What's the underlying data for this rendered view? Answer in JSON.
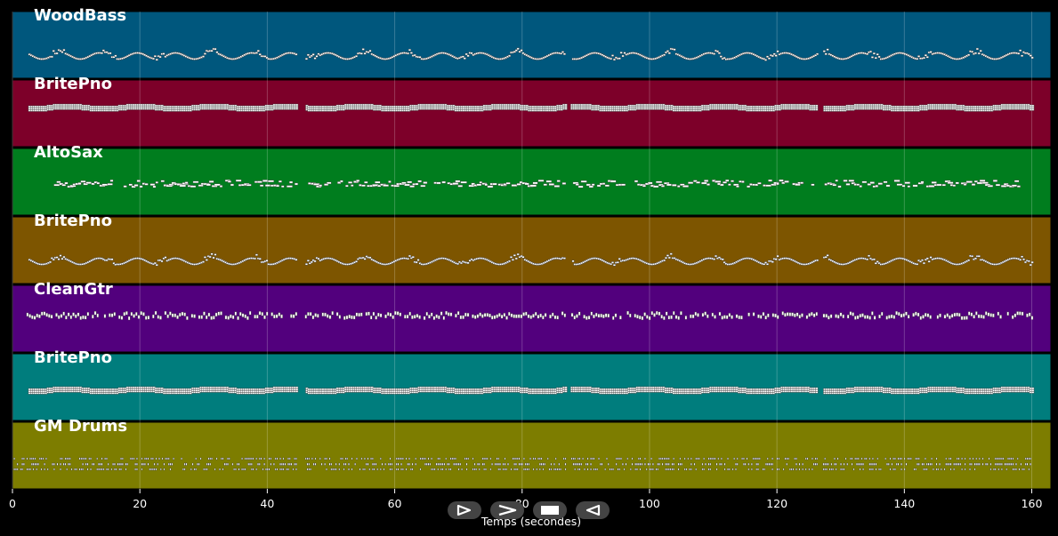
{
  "chart_data": {
    "type": "piano-roll",
    "xlabel": "Temps (secondes)",
    "xlim": [
      0,
      163
    ],
    "xticks": [
      0,
      20,
      40,
      60,
      80,
      100,
      120,
      140,
      160
    ],
    "tracks": [
      {
        "name": "WoodBass",
        "color": "#00577d",
        "pattern": "wave",
        "start": 2.5,
        "end": 160
      },
      {
        "name": "BritePno",
        "color": "#7d0029",
        "pattern": "chords",
        "start": 2.5,
        "end": 160
      },
      {
        "name": "AltoSax",
        "color": "#007d1e",
        "pattern": "melody",
        "start": 6.5,
        "end": 158
      },
      {
        "name": "BritePno",
        "color": "#7d5500",
        "pattern": "wave",
        "start": 2.5,
        "end": 160
      },
      {
        "name": "CleanGtr",
        "color": "#52007d",
        "pattern": "strum",
        "start": 2.2,
        "end": 160
      },
      {
        "name": "BritePno",
        "color": "#007d7d",
        "pattern": "chords",
        "start": 2.5,
        "end": 160
      },
      {
        "name": "GM Drums",
        "color": "#7d7d00",
        "pattern": "drums",
        "start": 0.2,
        "end": 160
      }
    ]
  },
  "toolbar": {
    "buttons": [
      {
        "name": "play-outline-button",
        "icon": "play-outline-icon"
      },
      {
        "name": "forward-button",
        "icon": "chevron-right-icon"
      },
      {
        "name": "stop-button",
        "icon": "stop-icon"
      },
      {
        "name": "rewind-button",
        "icon": "triangle-left-icon"
      }
    ]
  }
}
